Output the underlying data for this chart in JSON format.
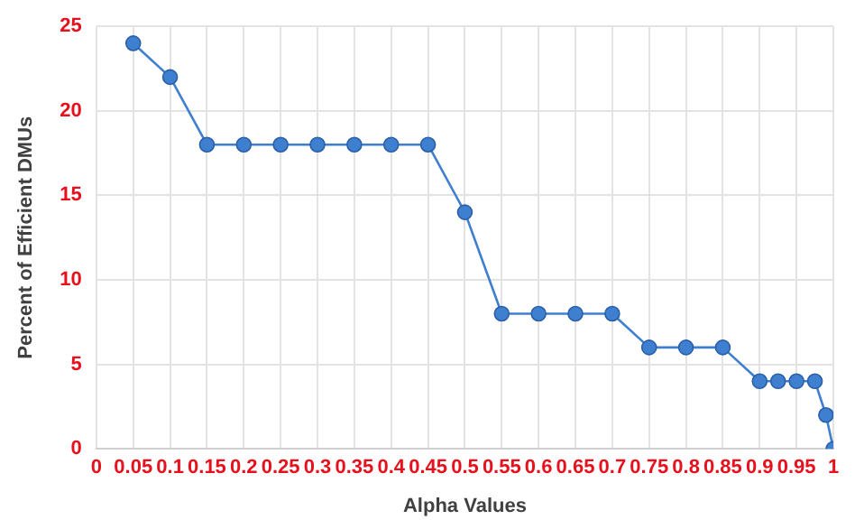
{
  "chart_data": {
    "type": "line",
    "xlabel": "Alpha Values",
    "ylabel": "Percent of Efficient DMUs",
    "x": [
      0.05,
      0.1,
      0.15,
      0.2,
      0.25,
      0.3,
      0.35,
      0.4,
      0.45,
      0.5,
      0.55,
      0.6,
      0.65,
      0.7,
      0.75,
      0.8,
      0.85,
      0.9,
      0.925,
      0.95,
      0.975,
      0.99,
      1
    ],
    "series": [
      {
        "color": "#3f7fd0",
        "values": [
          24,
          22,
          18,
          18,
          18,
          18,
          18,
          18,
          18,
          14,
          8,
          8,
          8,
          8,
          6,
          6,
          6,
          4,
          4,
          4,
          4,
          2,
          0
        ]
      }
    ],
    "xlim": [
      0,
      1
    ],
    "xticks": [
      0,
      {
        "value": 0.05,
        "label": "0.05"
      },
      {
        "value": 0.1,
        "label": "0.1"
      },
      {
        "value": 0.15,
        "label": "0.15"
      },
      {
        "value": 0.2,
        "label": "0.2"
      },
      {
        "value": 0.25,
        "label": "0.25"
      },
      {
        "value": 0.3,
        "label": "0.3"
      },
      {
        "value": 0.35,
        "label": "0.35"
      },
      {
        "value": 0.4,
        "label": "0.4"
      },
      {
        "value": 0.45,
        "label": "0.45"
      },
      {
        "value": 0.5,
        "label": "0.5"
      },
      {
        "value": 0.55,
        "label": "0.55"
      },
      {
        "value": 0.6,
        "label": "0.6"
      },
      {
        "value": 0.65,
        "label": "0.65"
      },
      {
        "value": 0.7,
        "label": "0.7"
      },
      {
        "value": 0.75,
        "label": "0.75"
      },
      {
        "value": 0.8,
        "label": "0.8"
      },
      {
        "value": 0.85,
        "label": "0.85"
      },
      {
        "value": 0.9,
        "label": "0.9"
      },
      {
        "value": 0.95,
        "label": "0.95"
      },
      1
    ],
    "ylim": [
      0,
      25
    ],
    "yticks": [
      0,
      5,
      10,
      15,
      20,
      25
    ],
    "grid": true,
    "legend": false,
    "marker": "circle",
    "line_style": "solid"
  }
}
